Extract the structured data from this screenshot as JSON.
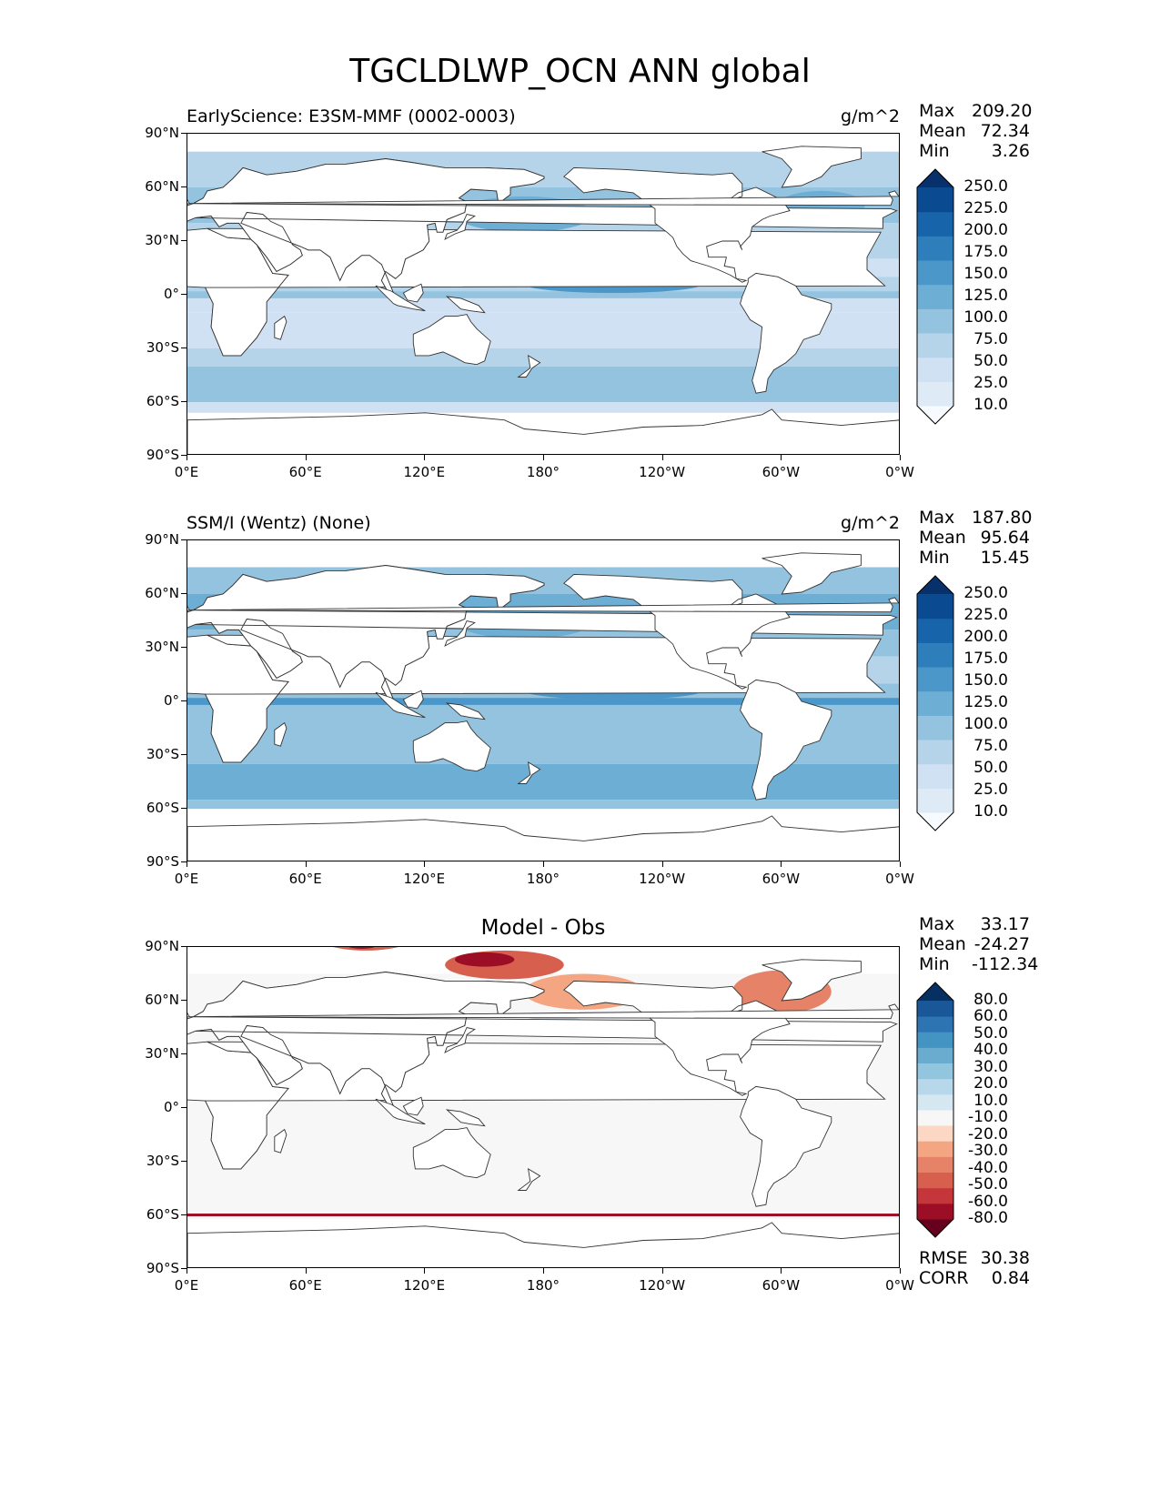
{
  "figure_title": "TGCLDLWP_OCN ANN global",
  "chart_data": [
    {
      "type": "heatmap",
      "panel": "test",
      "title": "EarlyScience: E3SM-MMF (0002-0003)",
      "units": "g/m^2",
      "stats": {
        "max": "209.20",
        "mean": "72.34",
        "min": "3.26"
      },
      "colorbar_levels": [
        "250.0",
        "225.0",
        "200.0",
        "175.0",
        "150.0",
        "125.0",
        "100.0",
        "75.0",
        "50.0",
        "25.0",
        "10.0"
      ],
      "xticks": [
        "0°E",
        "60°E",
        "120°E",
        "180°",
        "120°W",
        "60°W",
        "0°W"
      ],
      "yticks": [
        "90°N",
        "60°N",
        "30°N",
        "0°",
        "30°S",
        "60°S",
        "90°S"
      ],
      "colormap": "Blues"
    },
    {
      "type": "heatmap",
      "panel": "reference",
      "title": "SSM/I (Wentz) (None)",
      "units": "g/m^2",
      "stats": {
        "max": "187.80",
        "mean": "95.64",
        "min": "15.45"
      },
      "colorbar_levels": [
        "250.0",
        "225.0",
        "200.0",
        "175.0",
        "150.0",
        "125.0",
        "100.0",
        "75.0",
        "50.0",
        "25.0",
        "10.0"
      ],
      "xticks": [
        "0°E",
        "60°E",
        "120°E",
        "180°",
        "120°W",
        "60°W",
        "0°W"
      ],
      "yticks": [
        "90°N",
        "60°N",
        "30°N",
        "0°",
        "30°S",
        "60°S",
        "90°S"
      ],
      "colormap": "Blues"
    },
    {
      "type": "heatmap",
      "panel": "difference",
      "title": "Model - Obs",
      "stats": {
        "max": "33.17",
        "mean": "-24.27",
        "min": "-112.34"
      },
      "colorbar_levels": [
        "80.0",
        "60.0",
        "50.0",
        "40.0",
        "30.0",
        "20.0",
        "10.0",
        "-10.0",
        "-20.0",
        "-30.0",
        "-40.0",
        "-50.0",
        "-60.0",
        "-80.0"
      ],
      "xticks": [
        "0°E",
        "60°E",
        "120°E",
        "180°",
        "120°W",
        "60°W",
        "0°W"
      ],
      "yticks": [
        "90°N",
        "60°N",
        "30°N",
        "0°",
        "30°S",
        "60°S",
        "90°S"
      ],
      "colormap": "RdBu",
      "rmse": "30.38",
      "corr": "0.84"
    }
  ],
  "labels": {
    "max": "Max",
    "mean": "Mean",
    "min": "Min",
    "rmse": "RMSE",
    "corr": "CORR"
  },
  "colors": {
    "blues": [
      "#f7fbff",
      "#deebf7",
      "#cfe1f2",
      "#b5d4e9",
      "#93c3df",
      "#6daed5",
      "#4b97c9",
      "#2f7ebc",
      "#1864aa",
      "#0a4a90",
      "#08306b"
    ],
    "rdbu": [
      "#67001f",
      "#9c0e26",
      "#c4363a",
      "#d6604d",
      "#e58267",
      "#f4a582",
      "#fbd7c4",
      "#f7f7f7",
      "#d5e7f1",
      "#b7d8ea",
      "#92c5de",
      "#6aacd0",
      "#4393c3",
      "#2d74b2",
      "#1a5799",
      "#053061"
    ],
    "land_outline": "#333333"
  }
}
